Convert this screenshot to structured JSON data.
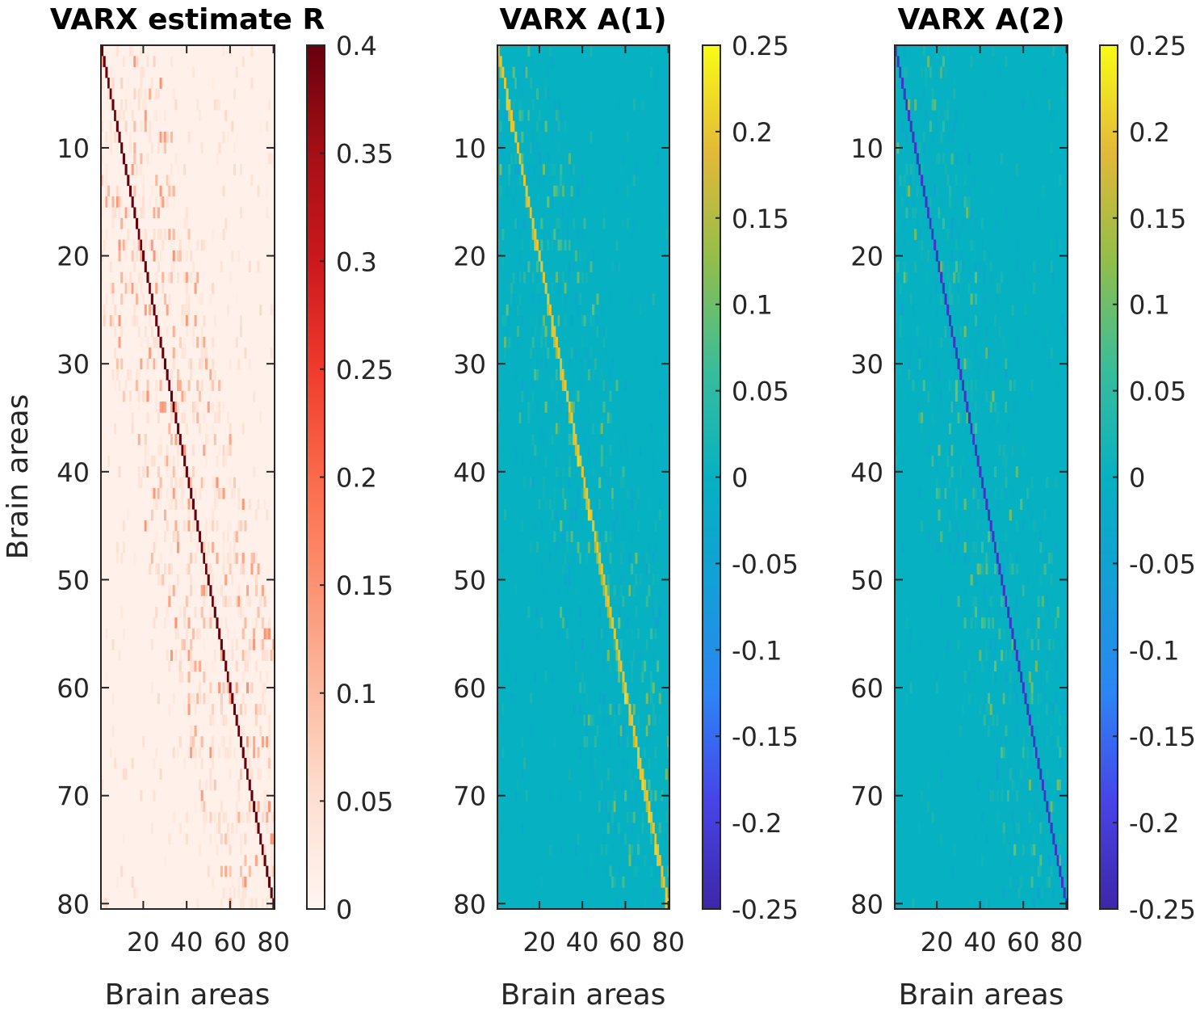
{
  "chart_data": [
    {
      "type": "heatmap",
      "title": "VARX estimate R",
      "xlabel": "Brain areas",
      "ylabel": "Brain areas",
      "size": 80,
      "xticks": [
        20,
        40,
        60,
        80
      ],
      "yticks": [
        10,
        20,
        30,
        40,
        50,
        60,
        70,
        80
      ],
      "colormap": "reds",
      "clim": [
        0,
        0.4
      ],
      "colorbar_ticks": [
        "0",
        "0.05",
        "0.1",
        "0.15",
        "0.2",
        "0.25",
        "0.3",
        "0.35",
        "0.4"
      ],
      "diagonal_value": 0.4,
      "background_value": 0.01
    },
    {
      "type": "heatmap",
      "title": "VARX A(1)",
      "xlabel": "Brain areas",
      "ylabel": "",
      "size": 80,
      "xticks": [
        20,
        40,
        60,
        80
      ],
      "yticks": [
        10,
        20,
        30,
        40,
        50,
        60,
        70,
        80
      ],
      "colormap": "parula",
      "clim": [
        -0.25,
        0.25
      ],
      "colorbar_ticks": [
        "-0.25",
        "-0.2",
        "-0.15",
        "-0.1",
        "-0.05",
        "0",
        "0.05",
        "0.1",
        "0.15",
        "0.2",
        "0.25"
      ],
      "diagonal_value": 0.2,
      "background_value": 0
    },
    {
      "type": "heatmap",
      "title": "VARX A(2)",
      "xlabel": "Brain areas",
      "ylabel": "",
      "size": 80,
      "xticks": [
        20,
        40,
        60,
        80
      ],
      "yticks": [
        10,
        20,
        30,
        40,
        50,
        60,
        70,
        80
      ],
      "colormap": "parula",
      "clim": [
        -0.25,
        0.25
      ],
      "colorbar_ticks": [
        "-0.25",
        "-0.2",
        "-0.15",
        "-0.1",
        "-0.05",
        "0",
        "0.05",
        "0.1",
        "0.15",
        "0.2",
        "0.25"
      ],
      "diagonal_value": -0.22,
      "background_value": 0
    }
  ]
}
